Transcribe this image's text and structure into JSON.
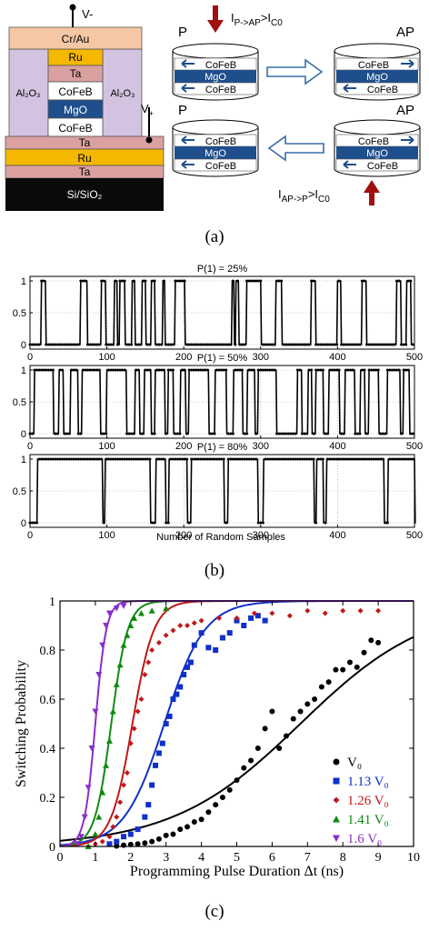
{
  "panel_a": {
    "caption": "(a)",
    "stack": {
      "top_contact": "V-",
      "side_contact": "V",
      "side_contact_sub": "+",
      "layers": [
        "Cr/Au",
        "Ru",
        "Ta",
        "CoFeB",
        "MgO",
        "CoFeB",
        "Ta",
        "Ru",
        "Ta",
        "Si/SiO₂"
      ],
      "insulator": "Al₂O₃"
    },
    "states": {
      "p_label": "P",
      "ap_label": "AP",
      "layers": [
        "CoFeB",
        "MgO",
        "CoFeB"
      ]
    },
    "currents": {
      "p_to_ap": "I",
      "p_to_ap_sub": "P->AP",
      "p_to_ap_rest": ">I",
      "p_to_ap_sub2": "C0",
      "ap_to_p": "I",
      "ap_to_p_sub": "AP->P",
      "ap_to_p_rest": ">I",
      "ap_to_p_sub2": "C0"
    },
    "colors": {
      "crau": "#f6c7a4",
      "ru": "#f5b800",
      "ta": "#dba0a0",
      "cofeb": "#ffffff",
      "mgo": "#1f4e8c",
      "al2o3": "#d3c3e0",
      "substrate": "#0a0a0a",
      "arrow": "#a01010",
      "open_arrow": "#3a6ea5"
    }
  },
  "panel_b": {
    "caption": "(b)",
    "xlabel": "Number of Random Samples",
    "plots": [
      {
        "title": "P(1) = 25%"
      },
      {
        "title": "P(1) = 50%"
      },
      {
        "title": "P(1) = 80%"
      }
    ]
  },
  "panel_c": {
    "caption": "(c)"
  },
  "chart_data": [
    {
      "type": "line",
      "title": "P(1) = 25%",
      "xlabel": "",
      "ylabel": "",
      "xlim": [
        0,
        500
      ],
      "ylim": [
        0,
        1
      ],
      "xticks": [
        0,
        100,
        200,
        300,
        400,
        500
      ],
      "yticks": [
        0,
        0.5,
        1
      ],
      "ones_intervals": [
        [
          15,
          20
        ],
        [
          66,
          74
        ],
        [
          93,
          98
        ],
        [
          110,
          113
        ],
        [
          117,
          123
        ],
        [
          133,
          136
        ],
        [
          146,
          150
        ],
        [
          158,
          162
        ],
        [
          173,
          175
        ],
        [
          189,
          201
        ],
        [
          263,
          265
        ],
        [
          268,
          271
        ],
        [
          282,
          300
        ],
        [
          320,
          327
        ],
        [
          366,
          371
        ],
        [
          400,
          404
        ],
        [
          432,
          437
        ],
        [
          477,
          482
        ],
        [
          490,
          495
        ]
      ]
    },
    {
      "type": "line",
      "title": "P(1) = 50%",
      "xlabel": "",
      "ylabel": "",
      "xlim": [
        0,
        500
      ],
      "ylim": [
        0,
        1
      ],
      "xticks": [
        0,
        100,
        200,
        300,
        400,
        500
      ],
      "yticks": [
        0,
        0.5,
        1
      ],
      "ones_intervals": [
        [
          6,
          30
        ],
        [
          38,
          43
        ],
        [
          53,
          62
        ],
        [
          68,
          91
        ],
        [
          100,
          125
        ],
        [
          137,
          142
        ],
        [
          149,
          157
        ],
        [
          163,
          175
        ],
        [
          180,
          186
        ],
        [
          196,
          202
        ],
        [
          207,
          232
        ],
        [
          241,
          255
        ],
        [
          265,
          276
        ],
        [
          283,
          292
        ],
        [
          297,
          320
        ],
        [
          348,
          353
        ],
        [
          362,
          366
        ],
        [
          372,
          381
        ],
        [
          389,
          402
        ],
        [
          410,
          422
        ],
        [
          430,
          435
        ],
        [
          441,
          453
        ],
        [
          465,
          481
        ],
        [
          486,
          493
        ]
      ]
    },
    {
      "type": "line",
      "title": "P(1) = 80%",
      "xlabel": "Number of Random Samples",
      "ylabel": "",
      "xlim": [
        0,
        500
      ],
      "ylim": [
        0,
        1
      ],
      "xticks": [
        0,
        100,
        200,
        300,
        400,
        500
      ],
      "yticks": [
        0,
        0.5,
        1
      ],
      "ones_intervals": [
        [
          10,
          94
        ],
        [
          98,
          156
        ],
        [
          164,
          176
        ],
        [
          181,
          204
        ],
        [
          210,
          252
        ],
        [
          258,
          296
        ],
        [
          304,
          369
        ],
        [
          373,
          381
        ],
        [
          386,
          460
        ],
        [
          466,
          500
        ]
      ]
    },
    {
      "type": "scatter",
      "title": "",
      "xlabel": "Programming Pulse Duration Δt (ns)",
      "ylabel": "Switching Probability",
      "xlim": [
        0,
        10
      ],
      "ylim": [
        0,
        1
      ],
      "xticks": [
        0,
        1,
        2,
        3,
        4,
        5,
        6,
        7,
        8,
        9,
        10
      ],
      "yticks": [
        0,
        0.2,
        0.4,
        0.6,
        0.8,
        1
      ],
      "series": [
        {
          "name": "V₀",
          "color": "#000000",
          "marker": "circle",
          "t50": 6.8,
          "k": 0.55,
          "points": [
            [
              1.6,
              0.002
            ],
            [
              1.8,
              0.005
            ],
            [
              2.0,
              0.008
            ],
            [
              2.2,
              0.01
            ],
            [
              2.4,
              0.014
            ],
            [
              2.6,
              0.02
            ],
            [
              2.8,
              0.03
            ],
            [
              3.0,
              0.045
            ],
            [
              3.2,
              0.05
            ],
            [
              3.4,
              0.07
            ],
            [
              3.6,
              0.08
            ],
            [
              3.8,
              0.1
            ],
            [
              4.0,
              0.11
            ],
            [
              4.2,
              0.14
            ],
            [
              4.4,
              0.17
            ],
            [
              4.6,
              0.2
            ],
            [
              4.8,
              0.23
            ],
            [
              5.0,
              0.27
            ],
            [
              5.2,
              0.32
            ],
            [
              5.4,
              0.35
            ],
            [
              5.6,
              0.4
            ],
            [
              5.8,
              0.48
            ],
            [
              6.0,
              0.55
            ],
            [
              6.2,
              0.4
            ],
            [
              6.4,
              0.45
            ],
            [
              6.6,
              0.52
            ],
            [
              6.8,
              0.55
            ],
            [
              7.0,
              0.58
            ],
            [
              7.2,
              0.6
            ],
            [
              7.4,
              0.65
            ],
            [
              7.6,
              0.67
            ],
            [
              7.8,
              0.72
            ],
            [
              8.0,
              0.72
            ],
            [
              8.2,
              0.75
            ],
            [
              8.4,
              0.73
            ],
            [
              8.6,
              0.79
            ],
            [
              8.8,
              0.84
            ],
            [
              9.0,
              0.83
            ]
          ]
        },
        {
          "name": "1.13 V₀",
          "color": "#1030c8",
          "marker": "square",
          "t50": 2.95,
          "k": 1.75,
          "points": [
            [
              1.4,
              0.01
            ],
            [
              1.6,
              0.02
            ],
            [
              1.8,
              0.04
            ],
            [
              2.0,
              0.05
            ],
            [
              2.2,
              0.07
            ],
            [
              2.4,
              0.12
            ],
            [
              2.5,
              0.17
            ],
            [
              2.6,
              0.25
            ],
            [
              2.7,
              0.33
            ],
            [
              2.8,
              0.38
            ],
            [
              2.9,
              0.42
            ],
            [
              3.0,
              0.5
            ],
            [
              3.1,
              0.53
            ],
            [
              3.2,
              0.6
            ],
            [
              3.3,
              0.62
            ],
            [
              3.4,
              0.65
            ],
            [
              3.5,
              0.7
            ],
            [
              3.6,
              0.73
            ],
            [
              3.7,
              0.75
            ],
            [
              3.8,
              0.82
            ],
            [
              4.0,
              0.87
            ],
            [
              4.2,
              0.81
            ],
            [
              4.4,
              0.8
            ],
            [
              4.6,
              0.85
            ],
            [
              4.8,
              0.87
            ],
            [
              5.0,
              0.92
            ],
            [
              5.2,
              0.9
            ],
            [
              5.4,
              0.93
            ],
            [
              5.6,
              0.94
            ],
            [
              5.8,
              0.92
            ]
          ]
        },
        {
          "name": "1.26 V₀",
          "color": "#c01818",
          "marker": "diamond",
          "t50": 2.05,
          "k": 3.3,
          "points": [
            [
              0.8,
              0.0
            ],
            [
              1.0,
              0.01
            ],
            [
              1.2,
              0.02
            ],
            [
              1.4,
              0.04
            ],
            [
              1.5,
              0.08
            ],
            [
              1.6,
              0.12
            ],
            [
              1.7,
              0.18
            ],
            [
              1.8,
              0.25
            ],
            [
              1.9,
              0.3
            ],
            [
              2.0,
              0.42
            ],
            [
              2.1,
              0.48
            ],
            [
              2.2,
              0.55
            ],
            [
              2.3,
              0.6
            ],
            [
              2.4,
              0.7
            ],
            [
              2.5,
              0.75
            ],
            [
              2.6,
              0.8
            ],
            [
              2.8,
              0.83
            ],
            [
              3.0,
              0.86
            ],
            [
              3.2,
              0.88
            ],
            [
              3.4,
              0.9
            ],
            [
              3.6,
              0.9
            ],
            [
              3.8,
              0.91
            ],
            [
              4.0,
              0.92
            ],
            [
              4.5,
              0.93
            ],
            [
              5.0,
              0.93
            ],
            [
              5.5,
              0.95
            ],
            [
              6.0,
              0.95
            ],
            [
              6.5,
              0.94
            ],
            [
              7.0,
              0.96
            ],
            [
              7.5,
              0.95
            ],
            [
              8.0,
              0.96
            ],
            [
              8.5,
              0.96
            ],
            [
              9.0,
              0.96
            ]
          ]
        },
        {
          "name": "1.41 V₀",
          "color": "#108a10",
          "marker": "triangle-up",
          "t50": 1.45,
          "k": 4.3,
          "points": [
            [
              0.8,
              0.0
            ],
            [
              1.0,
              0.05
            ],
            [
              1.1,
              0.12
            ],
            [
              1.2,
              0.22
            ],
            [
              1.3,
              0.33
            ],
            [
              1.4,
              0.43
            ],
            [
              1.5,
              0.55
            ],
            [
              1.6,
              0.66
            ],
            [
              1.7,
              0.74
            ],
            [
              1.8,
              0.82
            ],
            [
              1.9,
              0.86
            ],
            [
              2.0,
              0.9
            ],
            [
              2.1,
              0.93
            ],
            [
              2.3,
              0.95
            ],
            [
              2.6,
              0.96
            ],
            [
              3.0,
              0.97
            ]
          ]
        },
        {
          "name": "1.6 V₀",
          "color": "#8a2ec8",
          "marker": "triangle-down",
          "t50": 1.0,
          "k": 6.5,
          "points": [
            [
              0.5,
              0.01
            ],
            [
              0.6,
              0.04
            ],
            [
              0.7,
              0.12
            ],
            [
              0.8,
              0.24
            ],
            [
              0.9,
              0.4
            ],
            [
              1.0,
              0.55
            ],
            [
              1.1,
              0.7
            ],
            [
              1.2,
              0.82
            ],
            [
              1.3,
              0.9
            ],
            [
              1.4,
              0.95
            ],
            [
              1.6,
              0.97
            ],
            [
              1.8,
              0.98
            ]
          ]
        }
      ]
    }
  ]
}
